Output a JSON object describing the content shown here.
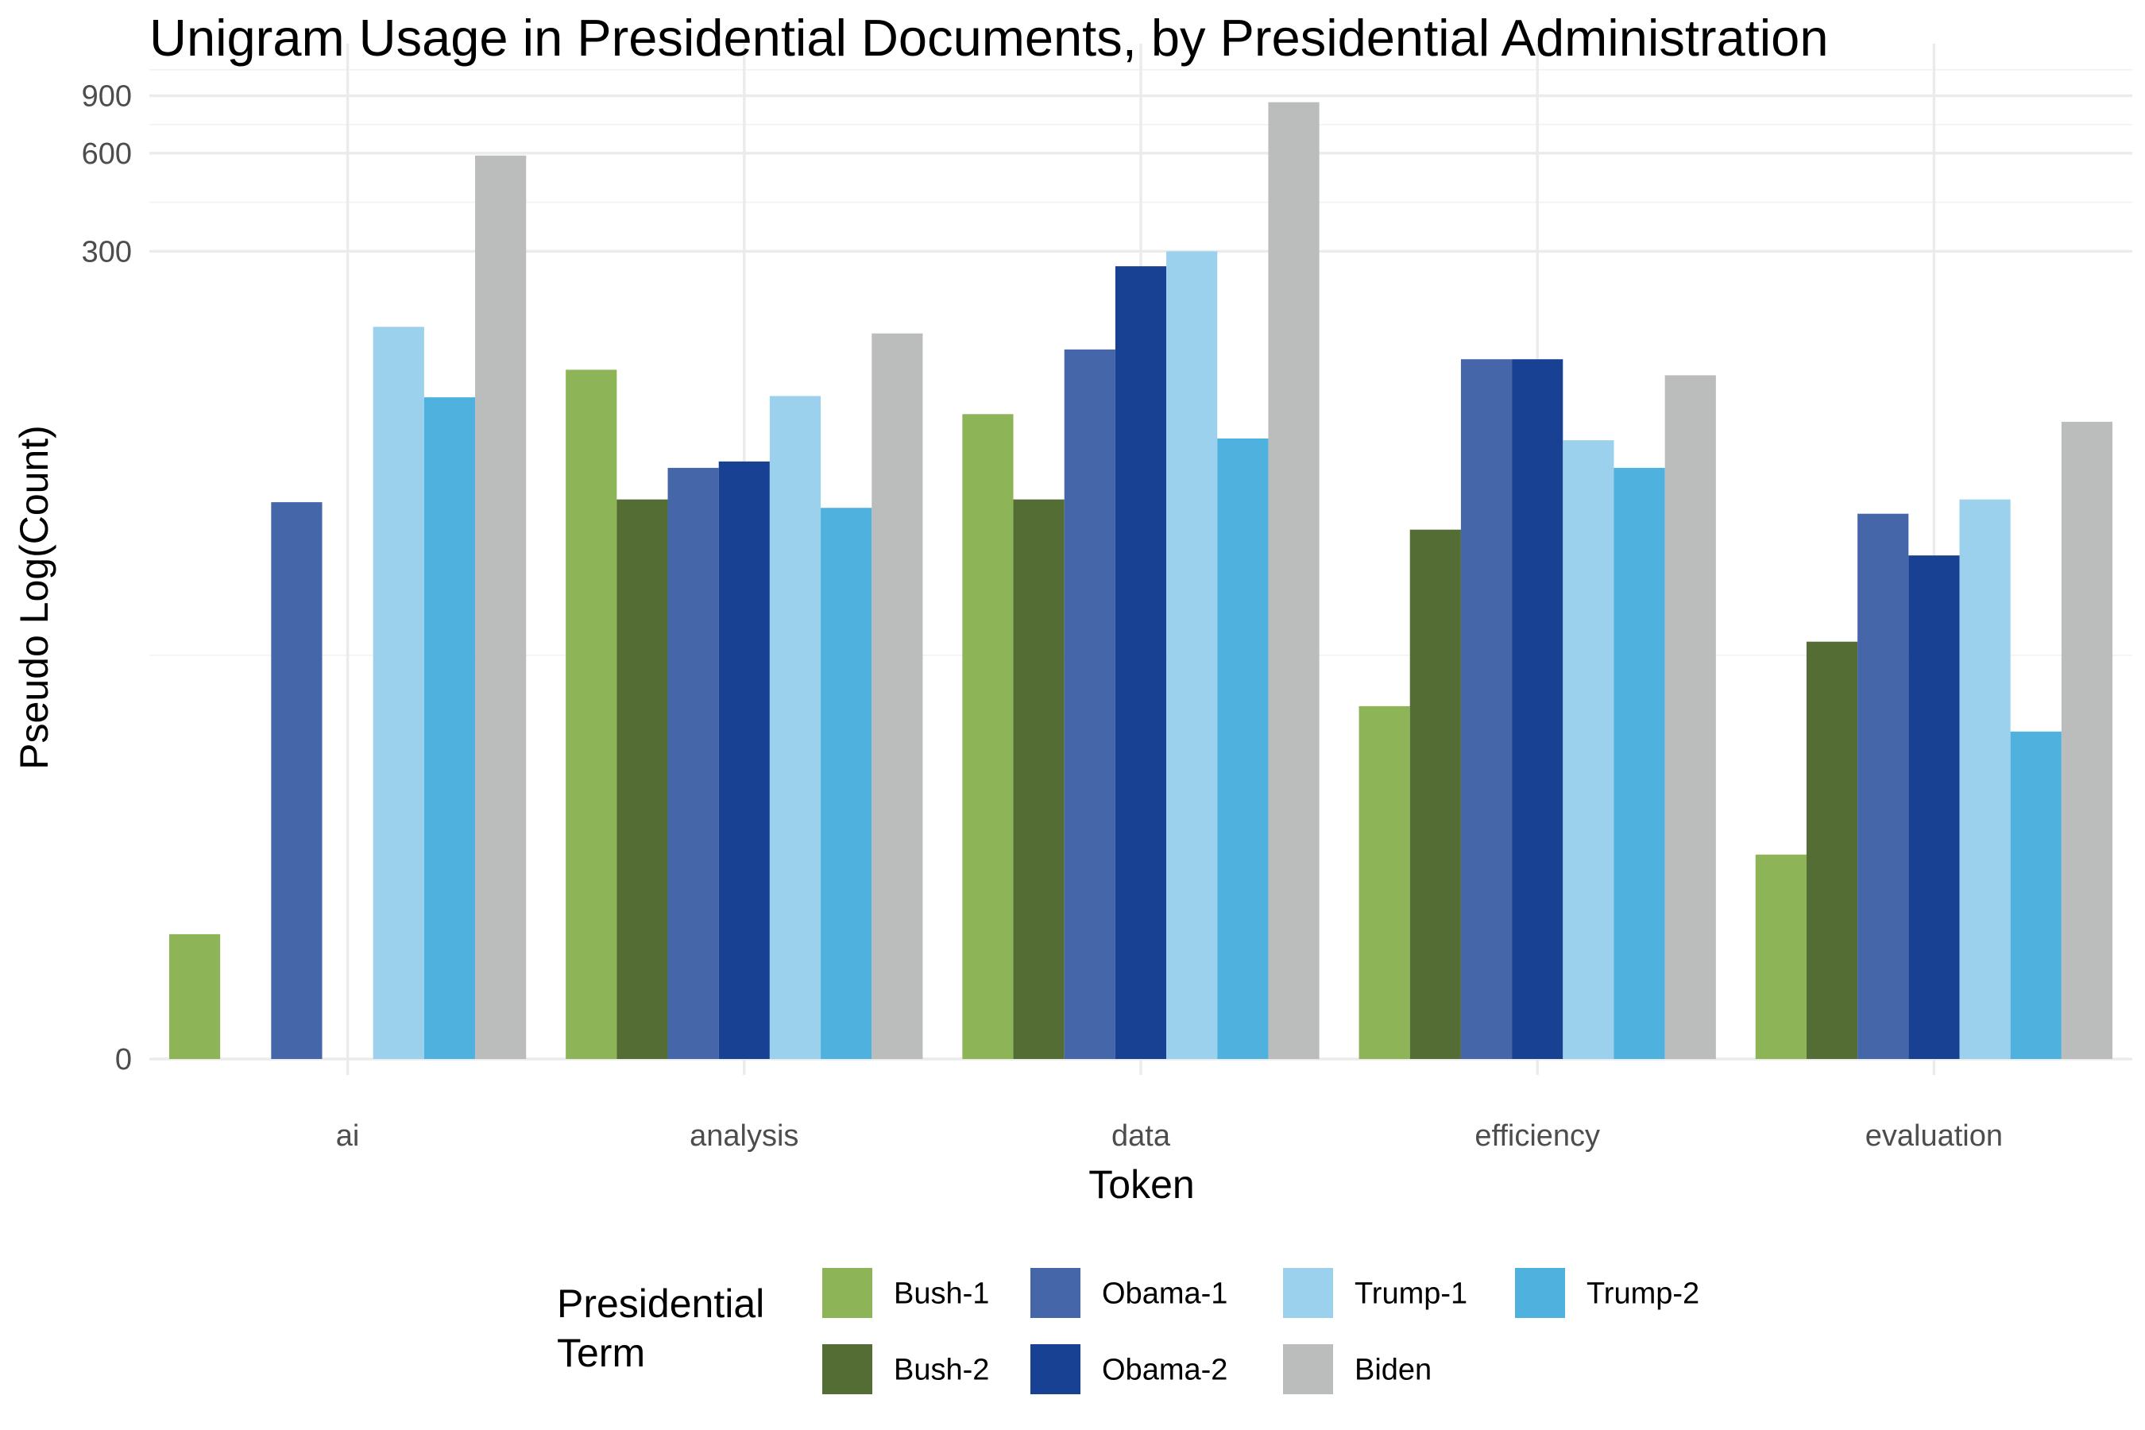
{
  "chart_data": {
    "type": "bar",
    "title": "Unigram Usage in Presidential Documents, by Presidential Administration",
    "xlabel": "Token",
    "ylabel": "Pseudo Log(Count)",
    "y_scale": "pseudo_log",
    "y_ticks": [
      0,
      300,
      600,
      900
    ],
    "y_tick_labels": [
      "0",
      "300",
      "600",
      "900"
    ],
    "ylim": [
      0,
      1300
    ],
    "grid": true,
    "legend_position": "bottom",
    "legend_title": "Presidential Term",
    "legend_title_lines": [
      "Presidential",
      "Term"
    ],
    "categories": [
      "ai",
      "analysis",
      "data",
      "efficiency",
      "evaluation"
    ],
    "series": [
      {
        "name": "Bush-1",
        "color": "#8db558",
        "values": [
          2,
          130,
          95,
          12,
          4
        ]
      },
      {
        "name": "Bush-2",
        "color": "#536d34",
        "values": [
          0,
          52,
          52,
          42,
          19
        ]
      },
      {
        "name": "Obama-1",
        "color": "#4666aa",
        "values": [
          51,
          65,
          150,
          140,
          47
        ]
      },
      {
        "name": "Obama-2",
        "color": "#184193",
        "values": [
          0,
          68,
          270,
          140,
          35
        ]
      },
      {
        "name": "Trump-1",
        "color": "#9bd1ec",
        "values": [
          176,
          108,
          300,
          79,
          52
        ]
      },
      {
        "name": "Trump-2",
        "color": "#4fb2de",
        "values": [
          107,
          49,
          80,
          65,
          10
        ]
      },
      {
        "name": "Biden",
        "color": "#bbbcbc",
        "values": [
          590,
          168,
          860,
          125,
          90
        ]
      }
    ],
    "legend_layout": [
      [
        "Bush-1",
        "Obama-1",
        "Trump-1",
        "Trump-2"
      ],
      [
        "Bush-2",
        "Obama-2",
        "Biden"
      ]
    ]
  }
}
